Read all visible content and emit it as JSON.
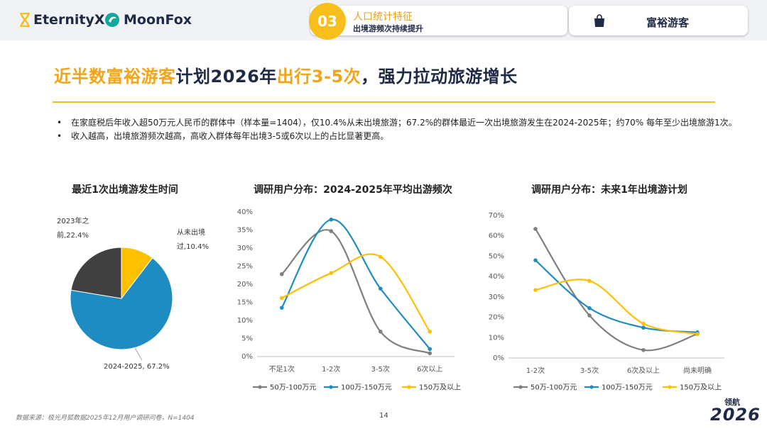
{
  "header": {
    "brand1": "EternityX",
    "brand2": "MoonFox",
    "section_number": "03",
    "section_title": "人口统计特征",
    "section_subtitle": "出境游频次持续提升",
    "segment_label": "富裕游客"
  },
  "headline": {
    "part1": "近半数富裕游客",
    "part2": "计划2026年",
    "part3": "出行3-5次",
    "part4": "，强力拉动旅游增长"
  },
  "bullets": [
    "在家庭税后年收入超50万元人民币的群体中（样本量=1404），仅10.4%从未出境旅游；67.2%的群体最近一次出境旅游发生在2024-2025年；约70% 每年至少出境旅游1次。",
    "收入越高，出境旅游频次越高，高收入群体每年出境3-5或6次以上的占比显著更高。"
  ],
  "colors": {
    "gray": "#7f7f7f",
    "blue": "#1f8cc1",
    "yellow": "#ffc000",
    "dark": "#404040",
    "accent": "#f6bf1c"
  },
  "chart_data": [
    {
      "type": "pie",
      "title": "最近1次出境游发生时间",
      "labels": [
        "从未出境过",
        "2024-2025",
        "2023年之前"
      ],
      "values": [
        10.4,
        67.2,
        22.4
      ],
      "data_labels": [
        "从未出境过,10.4%",
        "2024-2025, 67.2%",
        "2023年之前,22.4%"
      ],
      "colors": [
        "#ffc000",
        "#1f8cc1",
        "#404040"
      ]
    },
    {
      "type": "line",
      "title": "调研用户分布：2024-2025年平均出游频次",
      "categories": [
        "不足1次",
        "1-2次",
        "3-5次",
        "6次以上"
      ],
      "ylim": [
        0,
        40
      ],
      "yticks": [
        "0%",
        "5%",
        "10%",
        "15%",
        "20%",
        "25%",
        "30%",
        "35%",
        "40%"
      ],
      "series": [
        {
          "name": "50万-100万元",
          "values": [
            22.8,
            34.7,
            6.9,
            0.9
          ],
          "color": "#7f7f7f"
        },
        {
          "name": "100万-150万元",
          "values": [
            13.5,
            37.9,
            18.8,
            2.1
          ],
          "color": "#1f8cc1"
        },
        {
          "name": "150万及以上",
          "values": [
            16.2,
            23.1,
            27.6,
            6.9
          ],
          "color": "#ffc000"
        }
      ]
    },
    {
      "type": "line",
      "title": "调研用户分布：未来1年出境游计划",
      "categories": [
        "1-2次",
        "3-5次",
        "6次及以上",
        "尚未明确"
      ],
      "ylim": [
        0,
        70
      ],
      "yticks": [
        "0%",
        "10%",
        "20%",
        "30%",
        "40%",
        "50%",
        "60%",
        "70%"
      ],
      "series": [
        {
          "name": "50万-100万元",
          "values": [
            63.4,
            20.9,
            3.9,
            11.8
          ],
          "color": "#7f7f7f"
        },
        {
          "name": "100万-150万元",
          "values": [
            48.0,
            24.5,
            14.9,
            12.6
          ],
          "color": "#1f8cc1"
        },
        {
          "name": "150万及以上",
          "values": [
            33.4,
            37.9,
            16.9,
            11.8
          ],
          "color": "#ffc000"
        }
      ]
    }
  ],
  "footer": {
    "source": "数据来源：极光月狐数据2025年12月用户调研问卷，N=1404",
    "page": "14",
    "badge_top": "领航",
    "badge_bottom": "2026"
  }
}
